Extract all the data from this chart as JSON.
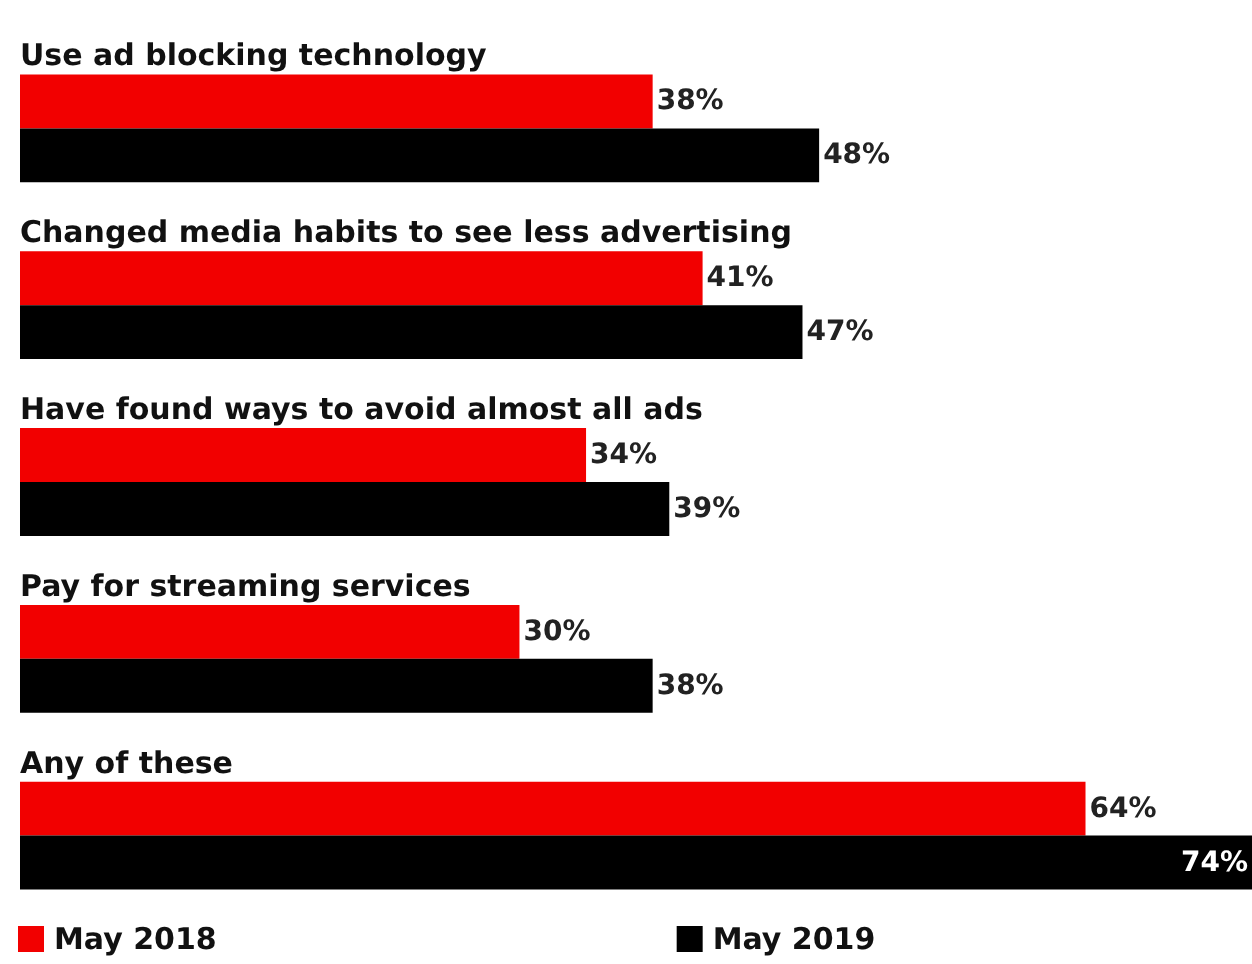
{
  "chart_data": {
    "type": "bar",
    "orientation": "horizontal",
    "categories": [
      "Use ad blocking technology",
      "Changed media habits to see less advertising",
      "Have found ways to avoid almost all ads",
      "Pay for streaming services",
      "Any of these"
    ],
    "series": [
      {
        "name": "May 2018",
        "color": "#f20000",
        "values": [
          38,
          41,
          34,
          30,
          64
        ],
        "value_labels": [
          "38%",
          "41%",
          "34%",
          "30%",
          "64%"
        ]
      },
      {
        "name": "May 2019",
        "color": "#000000",
        "values": [
          48,
          47,
          39,
          38,
          74
        ],
        "value_labels": [
          "48%",
          "47%",
          "39%",
          "38%",
          "74%"
        ]
      }
    ],
    "legend": "bottom"
  }
}
